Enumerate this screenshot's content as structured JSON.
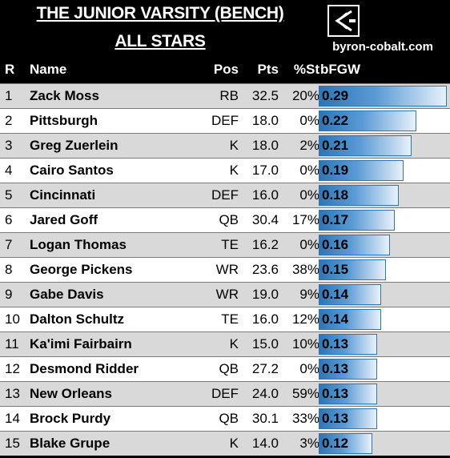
{
  "header": {
    "title_line1": "THE JUNIOR VARSITY (BENCH)",
    "title_line2": "ALL STARS",
    "site": "byron-cobalt.com"
  },
  "chart_data": {
    "type": "table",
    "columns": [
      "R",
      "Name",
      "Pos",
      "Pts",
      "%St",
      "bFGW"
    ],
    "bar_color": "#2e75b6",
    "bar_max": 0.29,
    "rows": [
      {
        "r": "1",
        "name": "Zack Moss",
        "pos": "RB",
        "pts": "32.5",
        "pct": "20%",
        "bfgw": "0.29",
        "value": 0.29
      },
      {
        "r": "2",
        "name": "Pittsburgh",
        "pos": "DEF",
        "pts": "18.0",
        "pct": "0%",
        "bfgw": "0.22",
        "value": 0.22
      },
      {
        "r": "3",
        "name": "Greg Zuerlein",
        "pos": "K",
        "pts": "18.0",
        "pct": "2%",
        "bfgw": "0.21",
        "value": 0.21
      },
      {
        "r": "4",
        "name": "Cairo Santos",
        "pos": "K",
        "pts": "17.0",
        "pct": "0%",
        "bfgw": "0.19",
        "value": 0.19
      },
      {
        "r": "5",
        "name": "Cincinnati",
        "pos": "DEF",
        "pts": "16.0",
        "pct": "0%",
        "bfgw": "0.18",
        "value": 0.18
      },
      {
        "r": "6",
        "name": "Jared Goff",
        "pos": "QB",
        "pts": "30.4",
        "pct": "17%",
        "bfgw": "0.17",
        "value": 0.17
      },
      {
        "r": "7",
        "name": "Logan Thomas",
        "pos": "TE",
        "pts": "16.2",
        "pct": "0%",
        "bfgw": "0.16",
        "value": 0.16
      },
      {
        "r": "8",
        "name": "George Pickens",
        "pos": "WR",
        "pts": "23.6",
        "pct": "38%",
        "bfgw": "0.15",
        "value": 0.15
      },
      {
        "r": "9",
        "name": "Gabe Davis",
        "pos": "WR",
        "pts": "19.0",
        "pct": "9%",
        "bfgw": "0.14",
        "value": 0.14
      },
      {
        "r": "10",
        "name": "Dalton Schultz",
        "pos": "TE",
        "pts": "16.0",
        "pct": "12%",
        "bfgw": "0.14",
        "value": 0.14
      },
      {
        "r": "11",
        "name": "Ka'imi Fairbairn",
        "pos": "K",
        "pts": "15.0",
        "pct": "10%",
        "bfgw": "0.13",
        "value": 0.13
      },
      {
        "r": "12",
        "name": "Desmond Ridder",
        "pos": "QB",
        "pts": "27.2",
        "pct": "0%",
        "bfgw": "0.13",
        "value": 0.13
      },
      {
        "r": "13",
        "name": "New Orleans",
        "pos": "DEF",
        "pts": "24.0",
        "pct": "59%",
        "bfgw": "0.13",
        "value": 0.13
      },
      {
        "r": "14",
        "name": "Brock Purdy",
        "pos": "QB",
        "pts": "30.1",
        "pct": "33%",
        "bfgw": "0.13",
        "value": 0.13
      },
      {
        "r": "15",
        "name": "Blake Grupe",
        "pos": "K",
        "pts": "14.0",
        "pct": "3%",
        "bfgw": "0.12",
        "value": 0.12
      }
    ]
  }
}
